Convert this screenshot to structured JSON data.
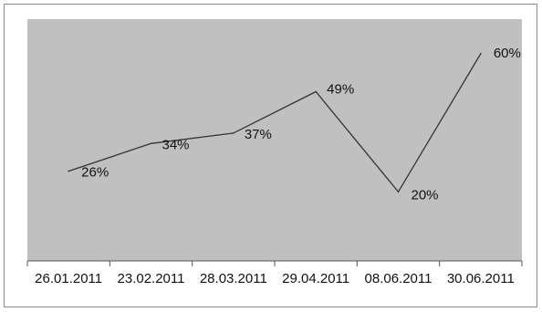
{
  "chart_data": {
    "type": "line",
    "categories": [
      "26.01.2011",
      "23.02.2011",
      "28.03.2011",
      "29.04.2011",
      "08.06.2011",
      "30.06.2011"
    ],
    "values": [
      26,
      34,
      37,
      49,
      20,
      60
    ],
    "data_labels": [
      "26%",
      "34%",
      "37%",
      "49%",
      "20%",
      "60%"
    ],
    "ylim": [
      0,
      70
    ],
    "grid": false,
    "legend": "none",
    "colors": {
      "plot_background": "#c0c0c0",
      "line": "#333333",
      "frame": "#8c8c8c"
    }
  }
}
